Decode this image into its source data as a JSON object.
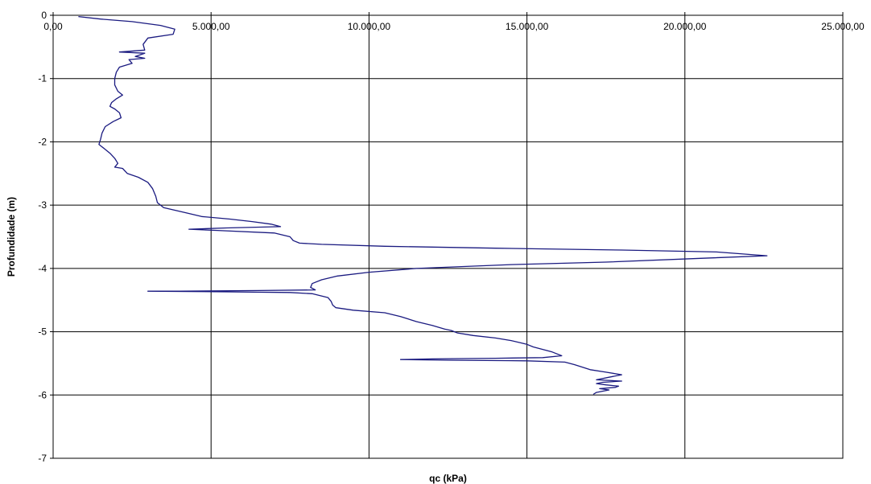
{
  "chart_data": {
    "type": "line",
    "title": "",
    "xlabel": "qc (kPa)",
    "ylabel": "Profundidade (m)",
    "xlim": [
      0,
      25000
    ],
    "ylim": [
      -7,
      0
    ],
    "x_ticks": [
      0,
      5000,
      10000,
      15000,
      20000,
      25000
    ],
    "x_tick_labels": [
      "0,00",
      "5.000,00",
      "10.000,00",
      "15.000,00",
      "20.000,00",
      "25.000,00"
    ],
    "y_ticks": [
      0,
      -1,
      -2,
      -3,
      -4,
      -5,
      -6,
      -7
    ],
    "y_tick_labels": [
      "0",
      "-1",
      "-2",
      "-3",
      "-4",
      "-5",
      "-6",
      "-7"
    ],
    "x_axis_position": "top",
    "grid": true,
    "legend": "none",
    "series": [
      {
        "color": "#1a1a80",
        "points": [
          [
            800,
            -0.02
          ],
          [
            1500,
            -0.06
          ],
          [
            2500,
            -0.1
          ],
          [
            3400,
            -0.16
          ],
          [
            3850,
            -0.22
          ],
          [
            3800,
            -0.3
          ],
          [
            3000,
            -0.36
          ],
          [
            2850,
            -0.46
          ],
          [
            2900,
            -0.55
          ],
          [
            2100,
            -0.58
          ],
          [
            2900,
            -0.6
          ],
          [
            2600,
            -0.65
          ],
          [
            2900,
            -0.68
          ],
          [
            2400,
            -0.7
          ],
          [
            2500,
            -0.76
          ],
          [
            2100,
            -0.82
          ],
          [
            2000,
            -0.9
          ],
          [
            1950,
            -1.0
          ],
          [
            1950,
            -1.1
          ],
          [
            2050,
            -1.2
          ],
          [
            2200,
            -1.26
          ],
          [
            2000,
            -1.32
          ],
          [
            1850,
            -1.38
          ],
          [
            1800,
            -1.44
          ],
          [
            1950,
            -1.48
          ],
          [
            2100,
            -1.54
          ],
          [
            2150,
            -1.62
          ],
          [
            1900,
            -1.68
          ],
          [
            1650,
            -1.76
          ],
          [
            1550,
            -1.86
          ],
          [
            1500,
            -1.96
          ],
          [
            1450,
            -2.04
          ],
          [
            1600,
            -2.1
          ],
          [
            1800,
            -2.18
          ],
          [
            1950,
            -2.26
          ],
          [
            2050,
            -2.34
          ],
          [
            1950,
            -2.4
          ],
          [
            2200,
            -2.42
          ],
          [
            2350,
            -2.5
          ],
          [
            2700,
            -2.56
          ],
          [
            3000,
            -2.64
          ],
          [
            3150,
            -2.74
          ],
          [
            3250,
            -2.86
          ],
          [
            3300,
            -2.96
          ],
          [
            3500,
            -3.04
          ],
          [
            4200,
            -3.12
          ],
          [
            4700,
            -3.18
          ],
          [
            5600,
            -3.22
          ],
          [
            6300,
            -3.26
          ],
          [
            6900,
            -3.3
          ],
          [
            7200,
            -3.34
          ],
          [
            5500,
            -3.36
          ],
          [
            4300,
            -3.38
          ],
          [
            5200,
            -3.4
          ],
          [
            7000,
            -3.44
          ],
          [
            7500,
            -3.5
          ],
          [
            7600,
            -3.56
          ],
          [
            7800,
            -3.6
          ],
          [
            8500,
            -3.62
          ],
          [
            10500,
            -3.65
          ],
          [
            14000,
            -3.68
          ],
          [
            18000,
            -3.71
          ],
          [
            21000,
            -3.74
          ],
          [
            22600,
            -3.8
          ],
          [
            20500,
            -3.84
          ],
          [
            17500,
            -3.9
          ],
          [
            14500,
            -3.94
          ],
          [
            11500,
            -4.0
          ],
          [
            10000,
            -4.06
          ],
          [
            9000,
            -4.12
          ],
          [
            8500,
            -4.18
          ],
          [
            8200,
            -4.24
          ],
          [
            8150,
            -4.3
          ],
          [
            8300,
            -4.34
          ],
          [
            6500,
            -4.35
          ],
          [
            4000,
            -4.36
          ],
          [
            3000,
            -4.36
          ],
          [
            5500,
            -4.37
          ],
          [
            7500,
            -4.38
          ],
          [
            8200,
            -4.4
          ],
          [
            8700,
            -4.46
          ],
          [
            8800,
            -4.52
          ],
          [
            8850,
            -4.58
          ],
          [
            8950,
            -4.62
          ],
          [
            9500,
            -4.66
          ],
          [
            10500,
            -4.7
          ],
          [
            11000,
            -4.76
          ],
          [
            11500,
            -4.84
          ],
          [
            12000,
            -4.9
          ],
          [
            12400,
            -4.96
          ],
          [
            12600,
            -4.98
          ],
          [
            12800,
            -5.02
          ],
          [
            13300,
            -5.06
          ],
          [
            14000,
            -5.1
          ],
          [
            14500,
            -5.14
          ],
          [
            15000,
            -5.2
          ],
          [
            15200,
            -5.24
          ],
          [
            15500,
            -5.28
          ],
          [
            15800,
            -5.32
          ],
          [
            16100,
            -5.38
          ],
          [
            15500,
            -5.41
          ],
          [
            14000,
            -5.42
          ],
          [
            12000,
            -5.43
          ],
          [
            11000,
            -5.44
          ],
          [
            12500,
            -5.45
          ],
          [
            15000,
            -5.46
          ],
          [
            16200,
            -5.48
          ],
          [
            16500,
            -5.52
          ],
          [
            17000,
            -5.6
          ],
          [
            17500,
            -5.64
          ],
          [
            18000,
            -5.68
          ],
          [
            17600,
            -5.72
          ],
          [
            17200,
            -5.76
          ],
          [
            18000,
            -5.78
          ],
          [
            17400,
            -5.8
          ],
          [
            17200,
            -5.82
          ],
          [
            17500,
            -5.84
          ],
          [
            17900,
            -5.86
          ],
          [
            17800,
            -5.88
          ],
          [
            17300,
            -5.9
          ],
          [
            17600,
            -5.92
          ],
          [
            17200,
            -5.96
          ],
          [
            17100,
            -5.99
          ]
        ]
      }
    ]
  }
}
